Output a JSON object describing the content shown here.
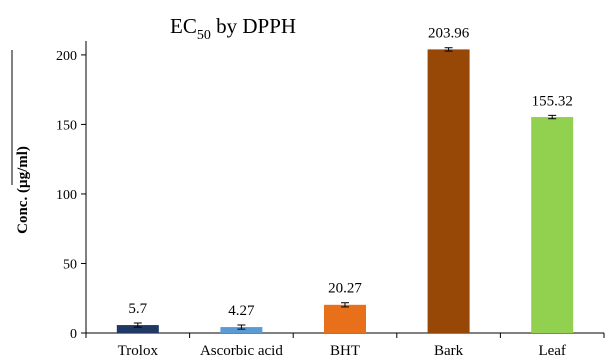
{
  "chart_data": {
    "type": "bar",
    "title_main": "EC",
    "title_sub": "50",
    "title_rest": " by DPPH",
    "xlabel": "",
    "ylabel": "Conc. (µg/ml)",
    "ylim": [
      0,
      210
    ],
    "yticks": [
      0,
      50,
      100,
      150,
      200
    ],
    "grid": false,
    "categories": [
      "Trolox",
      "Ascorbic acid",
      "BHT",
      "Bark",
      "Leaf"
    ],
    "values": [
      5.7,
      4.27,
      20.27,
      203.96,
      155.32
    ],
    "value_labels": [
      "5.7",
      "4.27",
      "20.27",
      "203.96",
      "155.32"
    ],
    "errors": [
      1.5,
      1.5,
      1.5,
      1.2,
      1.2
    ],
    "colors": [
      "#1f3864",
      "#5b9bd5",
      "#e8701a",
      "#974706",
      "#92d050"
    ]
  }
}
